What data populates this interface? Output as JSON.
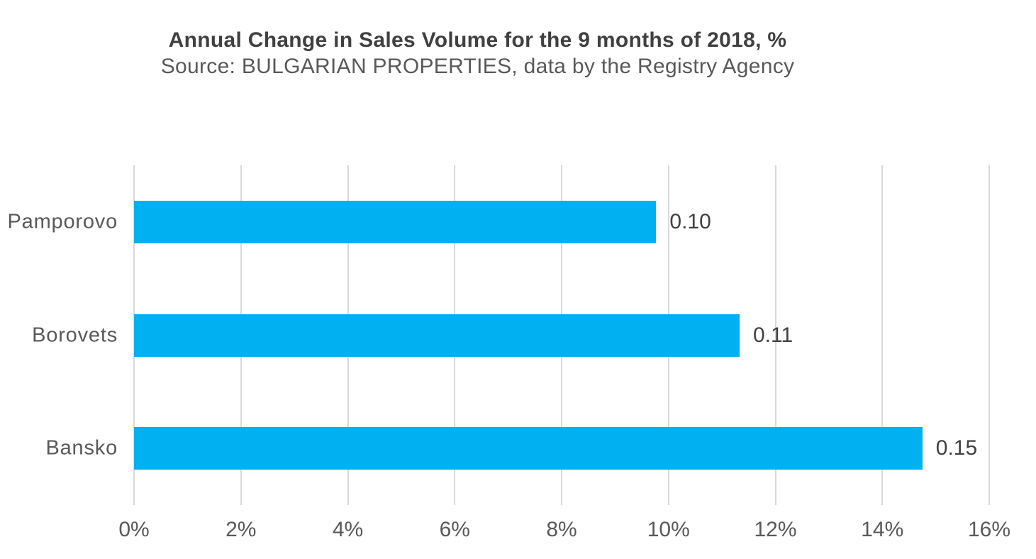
{
  "page": {
    "background": "#FFFFFF"
  },
  "chart_data": {
    "type": "bar",
    "orientation": "horizontal",
    "title": "Annual Change in Sales Volume for the 9 months of 2018, %",
    "subtitle": "Source: BULGARIAN PROPERTIES, data by the Registry Agency",
    "categories": [
      "Pamporovo",
      "Borovets",
      "Bansko"
    ],
    "values_percent": [
      9.77,
      11.33,
      14.75
    ],
    "data_labels": [
      "0.10",
      "0.11",
      "0.15"
    ],
    "xlabel": "",
    "ylabel": "",
    "xlim": [
      0,
      16
    ],
    "x_ticks": [
      {
        "value": 0,
        "label": "0%"
      },
      {
        "value": 2,
        "label": "2%"
      },
      {
        "value": 4,
        "label": "4%"
      },
      {
        "value": 6,
        "label": "6%"
      },
      {
        "value": 8,
        "label": "8%"
      },
      {
        "value": 10,
        "label": "10%"
      },
      {
        "value": 12,
        "label": "12%"
      },
      {
        "value": 14,
        "label": "14%"
      },
      {
        "value": 16,
        "label": "16%"
      }
    ],
    "grid": "vertical-gridlines-only",
    "legend": "none",
    "colors": {
      "bar": "#00B0F0",
      "gridline": "#D9D9D9",
      "title_text": "#404040",
      "subtitle_text": "#595959",
      "category_text": "#595959",
      "tick_text": "#595959",
      "data_label_text": "#404040"
    }
  }
}
